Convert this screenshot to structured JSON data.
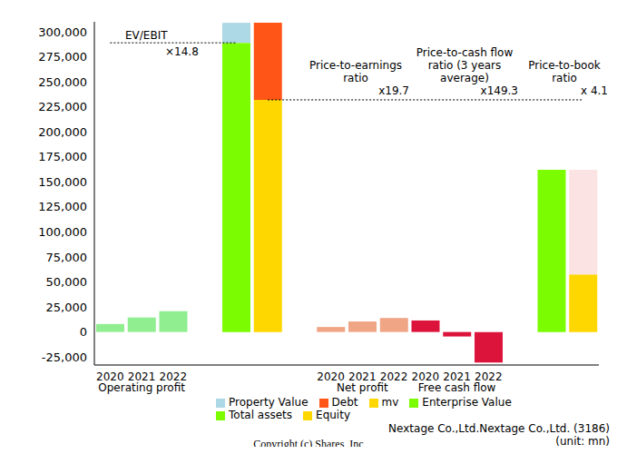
{
  "chart_data": {
    "type": "bar",
    "stacked": true,
    "grid": false,
    "legend": "bottom",
    "categories": [
      "2020",
      "2021",
      "2022",
      null,
      null,
      null,
      null,
      "2020",
      "2021",
      "2022",
      "2020",
      "2021",
      "2022",
      null,
      null,
      null
    ],
    "series": [
      {
        "name": "Property Value",
        "color": "#add8e6",
        "values": [
          null,
          null,
          null,
          null,
          20000,
          null,
          null,
          null,
          null,
          null,
          null,
          null,
          null,
          null,
          null,
          null
        ]
      },
      {
        "name": "Debt",
        "color": "#ff5516",
        "values": [
          null,
          null,
          null,
          null,
          null,
          77000,
          null,
          null,
          null,
          null,
          null,
          null,
          null,
          null,
          null,
          null
        ]
      },
      {
        "name": "mv",
        "color": "#ffd700",
        "values": [
          null,
          null,
          null,
          null,
          null,
          232000,
          null,
          null,
          null,
          null,
          null,
          null,
          null,
          null,
          null,
          null
        ]
      },
      {
        "name": "Enterprise Value",
        "color": "#7cfc00",
        "values": [
          null,
          null,
          null,
          null,
          289000,
          null,
          null,
          null,
          null,
          null,
          null,
          null,
          null,
          null,
          null,
          null
        ]
      },
      {
        "name": "Total assets",
        "color": "#7cfc00",
        "values": [
          null,
          null,
          null,
          null,
          null,
          null,
          null,
          null,
          null,
          null,
          null,
          null,
          null,
          null,
          162000,
          null
        ]
      },
      {
        "color": "#fbe3e3",
        "values": [
          null,
          null,
          null,
          null,
          null,
          null,
          null,
          null,
          null,
          null,
          null,
          null,
          null,
          null,
          null,
          104500
        ]
      },
      {
        "name": "Equity",
        "color": "#ffd700",
        "values": [
          null,
          null,
          null,
          null,
          null,
          null,
          null,
          null,
          null,
          null,
          null,
          null,
          null,
          null,
          null,
          57500
        ]
      },
      {
        "name": "Operating profit",
        "color": "#90ee90",
        "values": [
          8000,
          14500,
          20800,
          null,
          null,
          null,
          null,
          null,
          null,
          null,
          null,
          null,
          null,
          null,
          null,
          null
        ]
      },
      {
        "name": "Net profit",
        "color": "#f0a585",
        "values": [
          null,
          null,
          null,
          null,
          null,
          null,
          null,
          5000,
          10500,
          14000,
          null,
          null,
          null,
          null,
          null,
          null
        ]
      },
      {
        "name": "Free cash flow",
        "color": "#dc143c",
        "values": [
          null,
          null,
          null,
          null,
          null,
          null,
          null,
          null,
          null,
          null,
          11500,
          -4500,
          -30500,
          null,
          null,
          null
        ]
      }
    ],
    "ylim": [
      -33000,
      310000
    ],
    "yticks": [
      {
        "value": -25000,
        "label": "-25,000"
      },
      0,
      {
        "value": 25000,
        "label": "25,000"
      },
      {
        "value": 50000,
        "label": "50,000"
      },
      {
        "value": 75000,
        "label": "75,000"
      },
      {
        "value": 100000,
        "label": "100,000"
      },
      {
        "value": 125000,
        "label": "125,000"
      },
      {
        "value": 150000,
        "label": "150,000"
      },
      {
        "value": 175000,
        "label": "175,000"
      },
      {
        "value": 200000,
        "label": "200,000"
      },
      {
        "value": 225000,
        "label": "225,000"
      },
      {
        "value": 250000,
        "label": "250,000"
      },
      {
        "value": 275000,
        "label": "275,000"
      },
      {
        "value": 300000,
        "label": "300,000"
      }
    ],
    "annotations": [
      {
        "text": "EV/EBIT",
        "ratio": "×14.8",
        "series": "Enterprise Value"
      },
      {
        "text": "Price-to-earnings ratio",
        "ratio": "x19.7",
        "series": "mv"
      },
      {
        "text": "Price-to-cash flow ratio (3 years average)",
        "ratio": "x149.3",
        "series": "mv"
      },
      {
        "text": "Price-to-book ratio",
        "ratio": "x 4.1",
        "series": "mv"
      }
    ],
    "footer": {
      "company": "Nextage Co.,Ltd.Nextage Co.,Ltd. (3186)",
      "unit": "(unit: mn)",
      "copyright": "Copyright (c) Shares, Inc"
    }
  }
}
